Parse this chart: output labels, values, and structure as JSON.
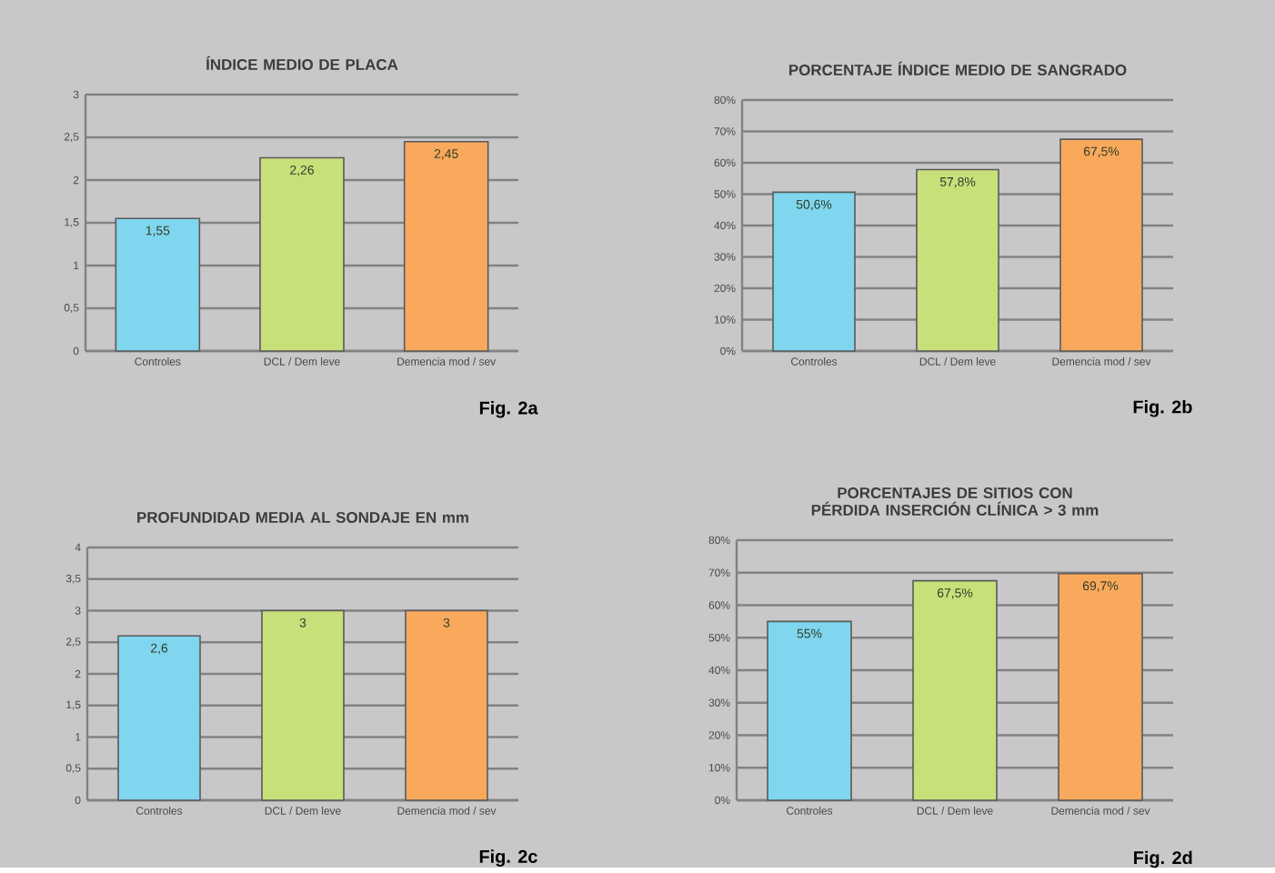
{
  "chart_data": [
    {
      "type": "bar",
      "title": "ÍNDICE MEDIO DE PLACA",
      "categories": [
        "Controles",
        "DCL / Dem leve",
        "Demencia mod / sev"
      ],
      "values": [
        1.55,
        2.26,
        2.45
      ],
      "colors": [
        "#7fd6ee",
        "#c8e07a",
        "#f8a95c"
      ],
      "value_labels": [
        "1,55",
        "2,26",
        "2,45"
      ],
      "ylim": [
        0,
        3
      ],
      "yticks": [
        0,
        {
          "value": 0.5,
          "label": "0,5"
        },
        1,
        {
          "value": 1.5,
          "label": "1,5"
        },
        2,
        {
          "value": 2.5,
          "label": "2,5"
        },
        3
      ],
      "grid": "y",
      "annotations": [
        "Fig. 2a"
      ]
    },
    {
      "type": "bar",
      "title": "PORCENTAJE ÍNDICE MEDIO DE SANGRADO",
      "categories": [
        "Controles",
        "DCL / Dem leve",
        "Demencia mod / sev"
      ],
      "values": [
        50.6,
        57.8,
        67.5
      ],
      "colors": [
        "#7fd6ee",
        "#c8e07a",
        "#f8a95c"
      ],
      "value_labels": [
        "50,6%",
        "57,8%",
        "67,5%"
      ],
      "ylim": [
        0,
        80
      ],
      "yticks": [
        {
          "value": 0,
          "label": "0%"
        },
        {
          "value": 10,
          "label": "10%"
        },
        {
          "value": 20,
          "label": "20%"
        },
        {
          "value": 30,
          "label": "30%"
        },
        {
          "value": 40,
          "label": "40%"
        },
        {
          "value": 50,
          "label": "50%"
        },
        {
          "value": 60,
          "label": "60%"
        },
        {
          "value": 70,
          "label": "70%"
        },
        {
          "value": 80,
          "label": "80%"
        }
      ],
      "grid": "y",
      "annotations": [
        "Fig. 2b"
      ]
    },
    {
      "type": "bar",
      "title": "PROFUNDIDAD MEDIA AL SONDAJE EN mm",
      "categories": [
        "Controles",
        "DCL / Dem leve",
        "Demencia mod / sev"
      ],
      "values": [
        2.6,
        3,
        3
      ],
      "colors": [
        "#7fd6ee",
        "#c8e07a",
        "#f8a95c"
      ],
      "value_labels": [
        "2,6",
        "3",
        "3"
      ],
      "ylim": [
        0,
        4
      ],
      "yticks": [
        0,
        {
          "value": 0.5,
          "label": "0,5"
        },
        1,
        {
          "value": 1.5,
          "label": "1,5"
        },
        2,
        {
          "value": 2.5,
          "label": "2,5"
        },
        3,
        {
          "value": 3.5,
          "label": "3,5"
        },
        4
      ],
      "grid": "y",
      "annotations": [
        "Fig. 2c"
      ]
    },
    {
      "type": "bar",
      "title": "PORCENTAJES DE SITIOS CON PÉRDIDA INSERCIÓN CLÍNICA > 3 mm",
      "categories": [
        "Controles",
        "DCL / Dem leve",
        "Demencia mod / sev"
      ],
      "values": [
        55,
        67.5,
        69.7
      ],
      "colors": [
        "#7fd6ee",
        "#c8e07a",
        "#f8a95c"
      ],
      "value_labels": [
        "55%",
        "67,5%",
        "69,7%"
      ],
      "ylim": [
        0,
        80
      ],
      "yticks": [
        {
          "value": 0,
          "label": "0%"
        },
        {
          "value": 10,
          "label": "10%"
        },
        {
          "value": 20,
          "label": "20%"
        },
        {
          "value": 30,
          "label": "30%"
        },
        {
          "value": 40,
          "label": "40%"
        },
        {
          "value": 50,
          "label": "50%"
        },
        {
          "value": 60,
          "label": "60%"
        },
        {
          "value": 70,
          "label": "70%"
        },
        {
          "value": 80,
          "label": "80%"
        }
      ],
      "grid": "y",
      "annotations": [
        "Fig. 2d"
      ]
    }
  ]
}
